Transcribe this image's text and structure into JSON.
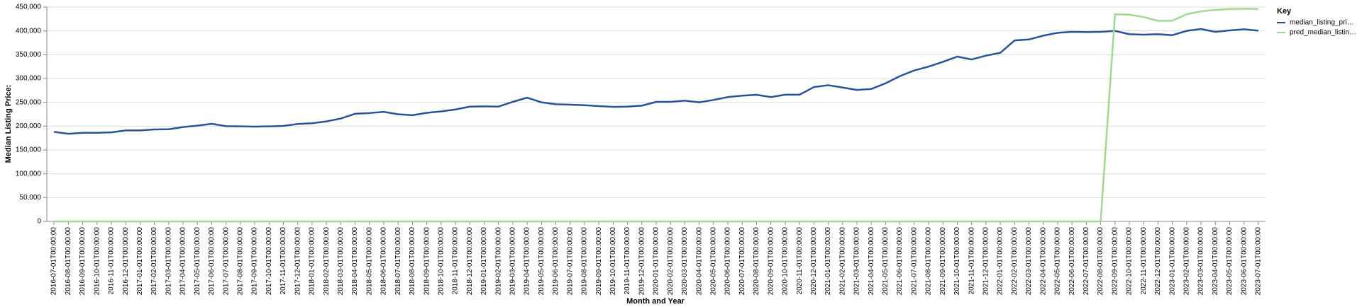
{
  "chart_data": {
    "type": "line",
    "x_label": "Month and Year",
    "y_label": "Median Listing Price:",
    "legend_title": "Key",
    "legend": "right",
    "grid": true,
    "categories": [
      "2016-07-01T00:00:00",
      "2016-08-01T00:00:00",
      "2016-09-01T00:00:00",
      "2016-10-01T00:00:00",
      "2016-11-01T00:00:00",
      "2016-12-01T00:00:00",
      "2017-01-01T00:00:00",
      "2017-02-01T00:00:00",
      "2017-03-01T00:00:00",
      "2017-04-01T00:00:00",
      "2017-05-01T00:00:00",
      "2017-06-01T00:00:00",
      "2017-07-01T00:00:00",
      "2017-08-01T00:00:00",
      "2017-09-01T00:00:00",
      "2017-10-01T00:00:00",
      "2017-11-01T00:00:00",
      "2017-12-01T00:00:00",
      "2018-01-01T00:00:00",
      "2018-02-01T00:00:00",
      "2018-03-01T00:00:00",
      "2018-04-01T00:00:00",
      "2018-05-01T00:00:00",
      "2018-06-01T00:00:00",
      "2018-07-01T00:00:00",
      "2018-08-01T00:00:00",
      "2018-09-01T00:00:00",
      "2018-10-01T00:00:00",
      "2018-11-01T00:00:00",
      "2018-12-01T00:00:00",
      "2019-01-01T00:00:00",
      "2019-02-01T00:00:00",
      "2019-03-01T00:00:00",
      "2019-04-01T00:00:00",
      "2019-05-01T00:00:00",
      "2019-06-01T00:00:00",
      "2019-07-01T00:00:00",
      "2019-08-01T00:00:00",
      "2019-09-01T00:00:00",
      "2019-10-01T00:00:00",
      "2019-11-01T00:00:00",
      "2019-12-01T00:00:00",
      "2020-01-01T00:00:00",
      "2020-02-01T00:00:00",
      "2020-03-01T00:00:00",
      "2020-04-01T00:00:00",
      "2020-05-01T00:00:00",
      "2020-06-01T00:00:00",
      "2020-07-01T00:00:00",
      "2020-08-01T00:00:00",
      "2020-09-01T00:00:00",
      "2020-10-01T00:00:00",
      "2020-11-01T00:00:00",
      "2020-12-01T00:00:00",
      "2021-01-01T00:00:00",
      "2021-02-01T00:00:00",
      "2021-03-01T00:00:00",
      "2021-04-01T00:00:00",
      "2021-05-01T00:00:00",
      "2021-06-01T00:00:00",
      "2021-07-01T00:00:00",
      "2021-08-01T00:00:00",
      "2021-09-01T00:00:00",
      "2021-10-01T00:00:00",
      "2021-11-01T00:00:00",
      "2021-12-01T00:00:00",
      "2022-01-01T00:00:00",
      "2022-02-01T00:00:00",
      "2022-03-01T00:00:00",
      "2022-04-01T00:00:00",
      "2022-05-01T00:00:00",
      "2022-06-01T00:00:00",
      "2022-07-01T00:00:00",
      "2022-08-01T00:00:00",
      "2022-09-01T00:00:00",
      "2022-10-01T00:00:00",
      "2022-11-01T00:00:00",
      "2022-12-01T00:00:00",
      "2023-01-01T00:00:00",
      "2023-02-01T00:00:00",
      "2023-03-01T00:00:00",
      "2023-04-01T00:00:00",
      "2023-05-01T00:00:00",
      "2023-06-01T00:00:00",
      "2023-07-01T00:00:00"
    ],
    "series": [
      {
        "name": "median_listing_pri…",
        "color": "#2a5298",
        "values": [
          188000,
          184000,
          186000,
          186000,
          187000,
          191000,
          191000,
          193000,
          193500,
          198000,
          201000,
          205000,
          200000,
          199500,
          199000,
          199500,
          200500,
          204500,
          206000,
          210000,
          216000,
          226000,
          227500,
          230000,
          225000,
          223000,
          228000,
          231000,
          235000,
          241000,
          241500,
          241000,
          251000,
          259900,
          250000,
          246000,
          245000,
          244000,
          242000,
          240500,
          241000,
          243000,
          251000,
          251000,
          253500,
          250000,
          255000,
          261000,
          264000,
          265900,
          261000,
          266000,
          266000,
          282000,
          286000,
          281000,
          276000,
          278000,
          290000,
          305000,
          317000,
          325000,
          335000,
          346000,
          340000,
          348000,
          354000,
          380000,
          382000,
          390000,
          396000,
          398000,
          397500,
          398000,
          400000,
          393000,
          392000,
          393000,
          391000,
          400000,
          404000,
          398000,
          401000,
          403500,
          400500
        ]
      },
      {
        "name": "pred_median_listin…",
        "color": "#9fd993",
        "values": [
          0,
          0,
          0,
          0,
          0,
          0,
          0,
          0,
          0,
          0,
          0,
          0,
          0,
          0,
          0,
          0,
          0,
          0,
          0,
          0,
          0,
          0,
          0,
          0,
          0,
          0,
          0,
          0,
          0,
          0,
          0,
          0,
          0,
          0,
          0,
          0,
          0,
          0,
          0,
          0,
          0,
          0,
          0,
          0,
          0,
          0,
          0,
          0,
          0,
          0,
          0,
          0,
          0,
          0,
          0,
          0,
          0,
          0,
          0,
          0,
          0,
          0,
          0,
          0,
          0,
          0,
          0,
          0,
          0,
          0,
          0,
          0,
          0,
          0,
          435000,
          434000,
          429000,
          421000,
          421500,
          435000,
          441000,
          444000,
          446000,
          446500,
          446000
        ]
      }
    ],
    "ylim": [
      0,
      450000
    ],
    "yticks": [
      0,
      {
        "value": 50000,
        "label": "50,000"
      },
      {
        "value": 100000,
        "label": "100,000"
      },
      {
        "value": 150000,
        "label": "150,000"
      },
      {
        "value": 200000,
        "label": "200,000"
      },
      {
        "value": 250000,
        "label": "250,000"
      },
      {
        "value": 300000,
        "label": "300,000"
      },
      {
        "value": 350000,
        "label": "350,000"
      },
      {
        "value": 400000,
        "label": "400,000"
      },
      {
        "value": 450000,
        "label": "450,000"
      }
    ]
  }
}
